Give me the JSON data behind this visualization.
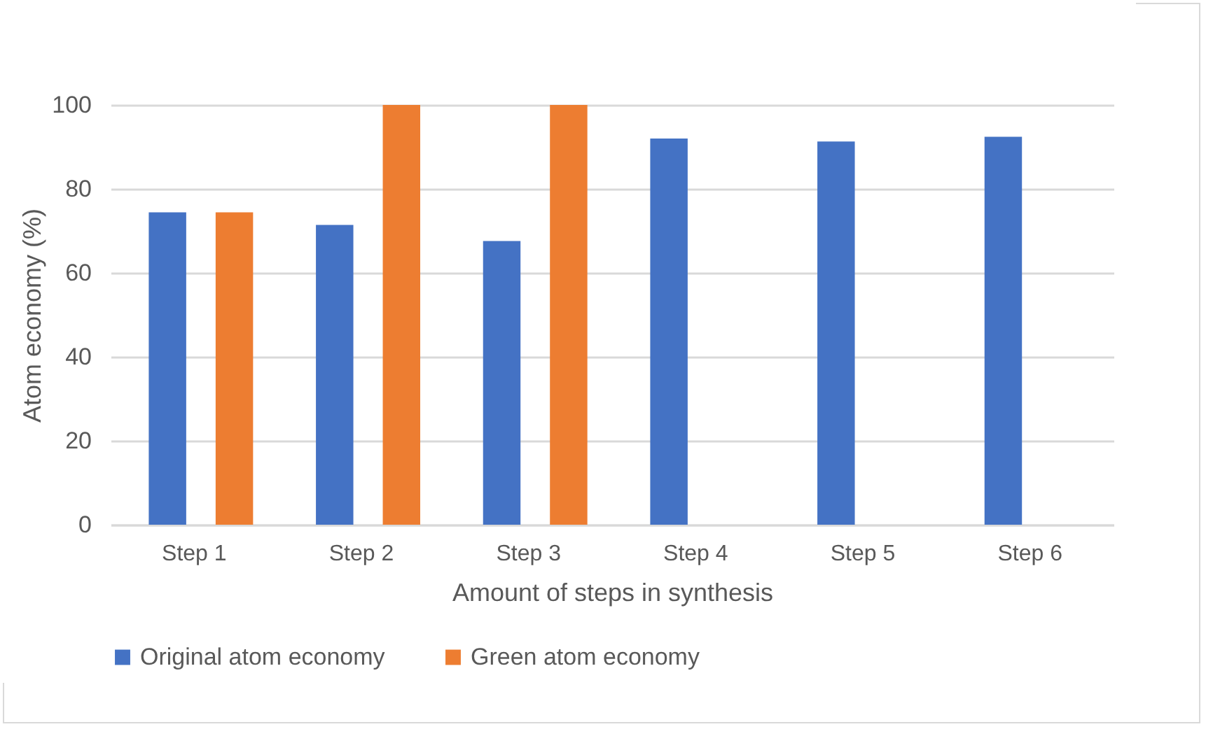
{
  "chart_data": {
    "type": "bar",
    "xlabel": "Amount of steps in synthesis",
    "ylabel": "Atom economy (%)",
    "categories": [
      "Step 1",
      "Step 2",
      "Step 3",
      "Step 4",
      "Step 5",
      "Step 6"
    ],
    "series": [
      {
        "name": "Original atom economy",
        "color": "#4472c4",
        "values": [
          74.4,
          71.4,
          67.6,
          92.0,
          91.3,
          92.4
        ]
      },
      {
        "name": "Green atom economy",
        "color": "#ed7d31",
        "values": [
          74.4,
          100,
          100,
          null,
          null,
          null
        ]
      }
    ],
    "ylim": [
      0,
      100
    ],
    "yticks": [
      0,
      20,
      40,
      60,
      80,
      100
    ],
    "grid": "y",
    "legend": "bottom"
  }
}
